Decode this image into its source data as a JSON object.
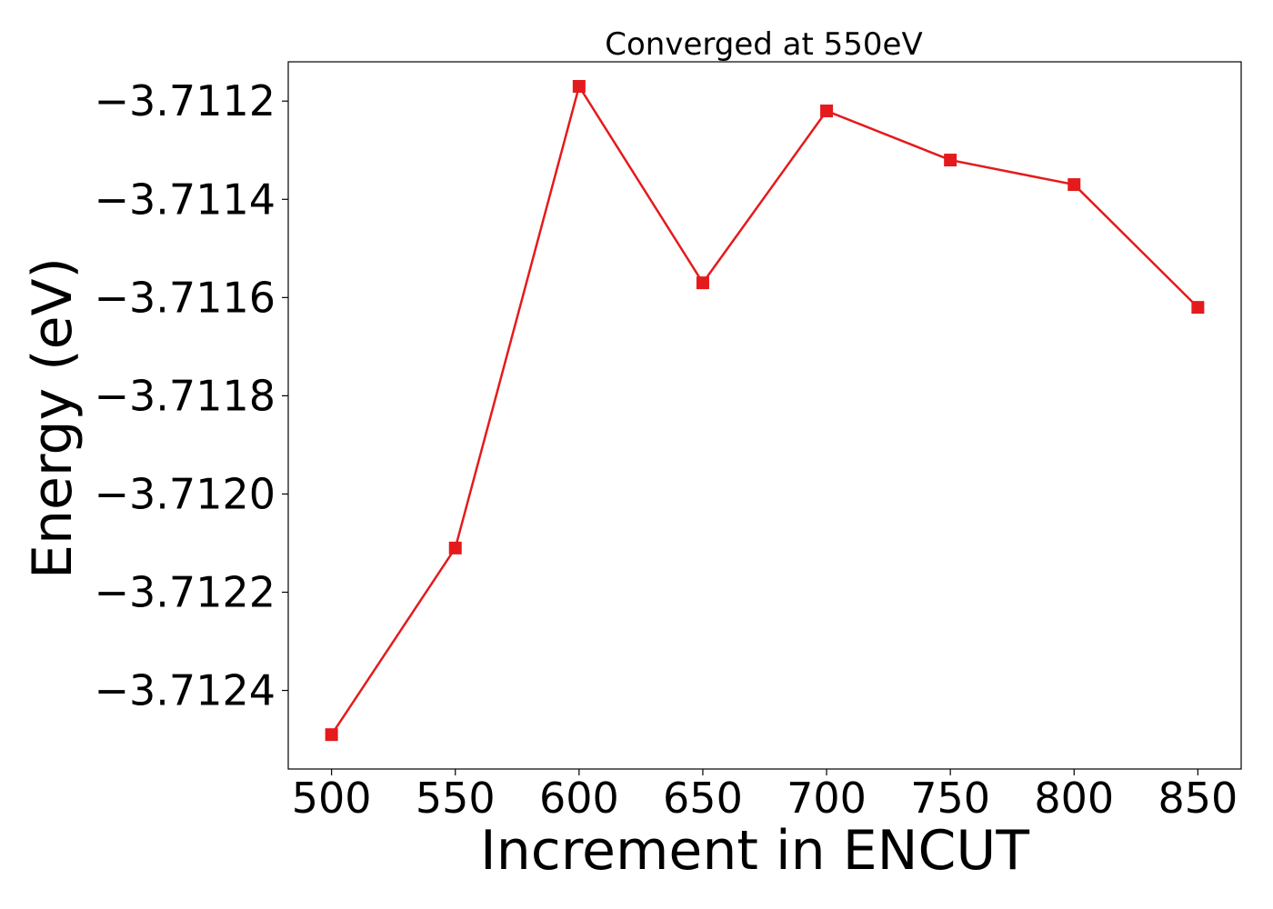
{
  "chart_data": {
    "type": "line",
    "title": "Converged at 550eV",
    "xlabel": "Increment in ENCUT",
    "ylabel": "Energy (eV)",
    "x": [
      500,
      550,
      600,
      650,
      700,
      750,
      800,
      850
    ],
    "series": [
      {
        "values": [
          -3.71249,
          -3.71211,
          -3.71117,
          -3.71157,
          -3.71122,
          -3.71132,
          -3.71137,
          -3.71162
        ],
        "color": "#e41a1c",
        "marker": "square"
      }
    ],
    "xticks": [
      500,
      550,
      600,
      650,
      700,
      750,
      800,
      850
    ],
    "xtick_labels": [
      "500",
      "550",
      "600",
      "650",
      "700",
      "750",
      "800",
      "850"
    ],
    "yticks": [
      -3.7112,
      -3.7114,
      -3.7116,
      -3.7118,
      -3.712,
      -3.7122,
      -3.7124
    ],
    "ytick_labels": [
      "−3.7112",
      "−3.7114",
      "−3.7116",
      "−3.7118",
      "−3.7120",
      "−3.7122",
      "−3.7124"
    ],
    "xlim": [
      482.5,
      867.5
    ],
    "ylim": [
      -3.71256,
      -3.71112
    ],
    "grid": false,
    "legend": "none"
  }
}
